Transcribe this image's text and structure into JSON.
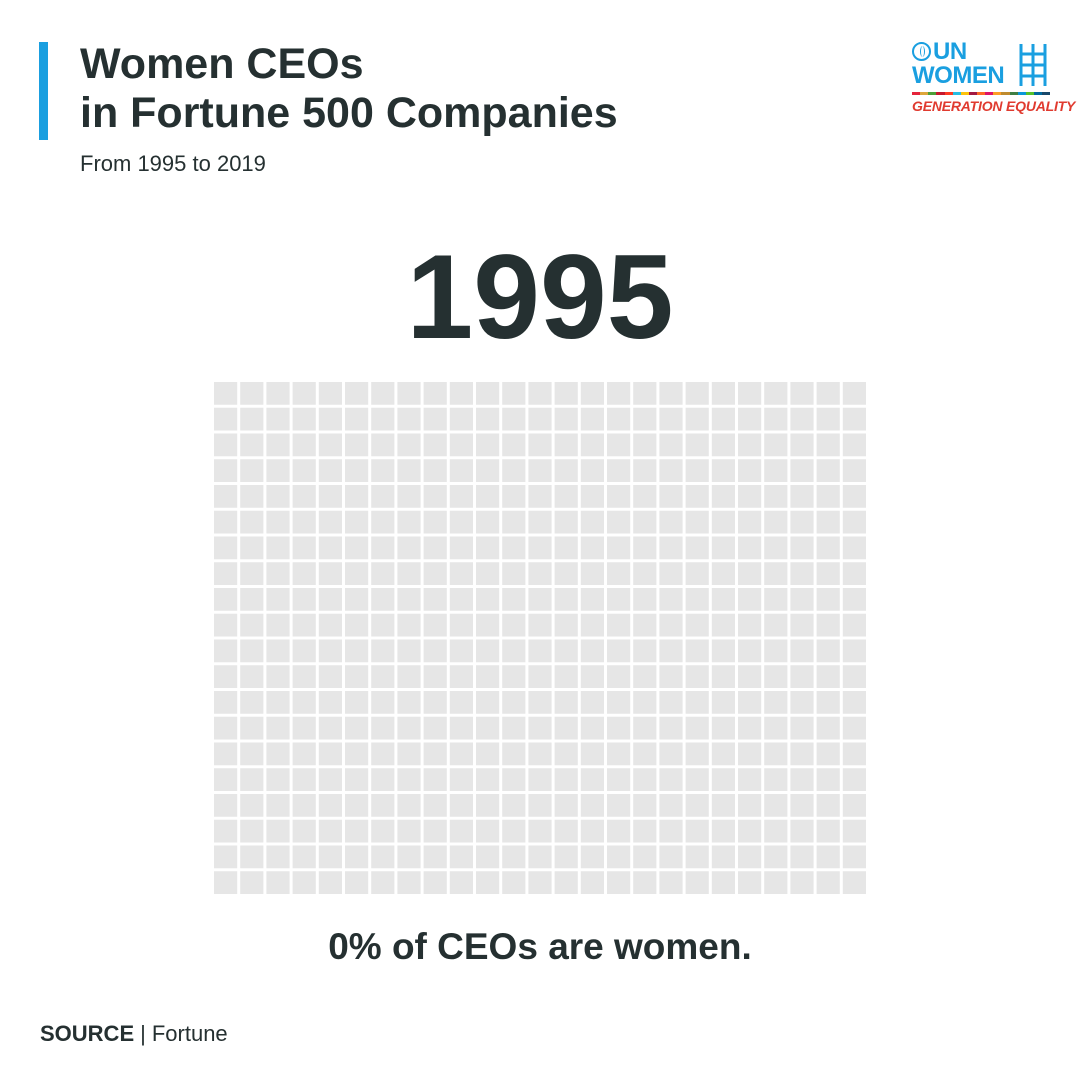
{
  "header": {
    "title_line1": "Women CEOs",
    "title_line2": "in Fortune 500 Companies",
    "subtitle": "From 1995 to 2019"
  },
  "logo": {
    "un_text": "UN",
    "women_text": "WOMEN",
    "tagline": "GENERATION EQUALITY"
  },
  "chart_data": {
    "type": "waffle",
    "title": "1995",
    "rows": 20,
    "columns": 25,
    "total_units": 500,
    "highlighted_units": 0,
    "percent_women": 0,
    "caption": "0% of CEOs are women."
  },
  "footer": {
    "source_label": "SOURCE",
    "separator": "|",
    "source_value": "Fortune"
  },
  "colors": {
    "accent": "#1a9fe0",
    "text": "#253031",
    "empty_cell": "#e6e6e6",
    "women_cell": "#1a9fe0",
    "logo_blue": "#1a9fe0",
    "logo_red": "#e03a2f"
  }
}
